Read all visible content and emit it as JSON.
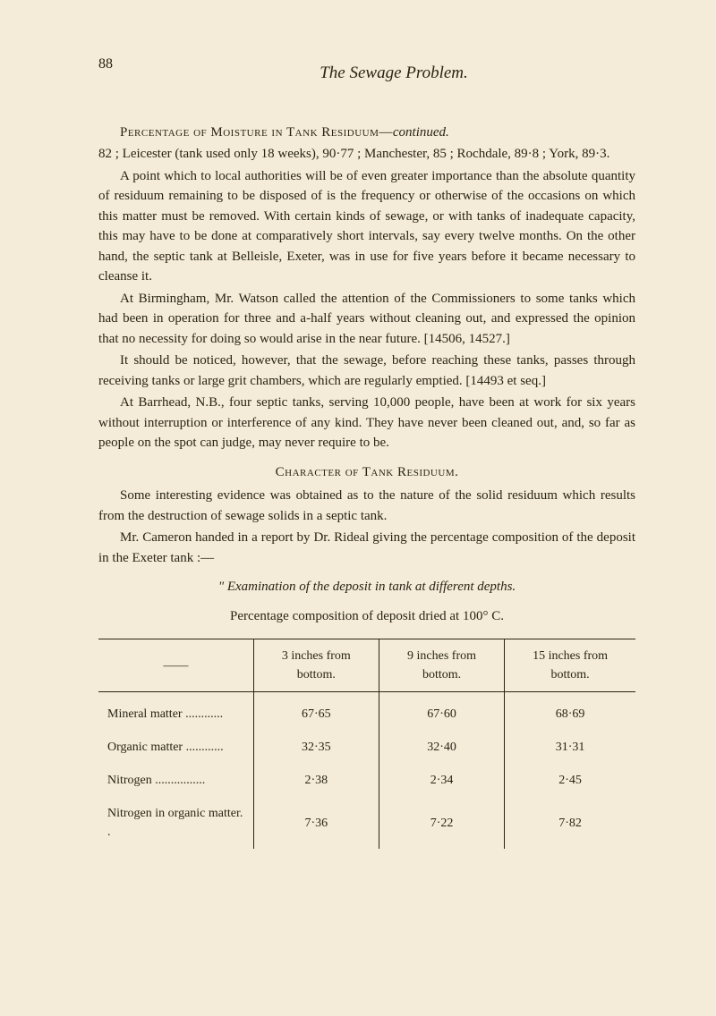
{
  "page_number": "88",
  "header_title": "The Sewage Problem.",
  "section_heading_1_prefix": "Percentage of Moisture in Tank Residuum—",
  "section_heading_1_suffix_italic": "continued.",
  "para_1": "82 ; Leicester (tank used only 18 weeks), 90·77 ; Manchester, 85 ; Rochdale, 89·8 ; York, 89·3.",
  "para_2": "A point which to local authorities will be of even greater importance than the absolute quantity of residuum remaining to be disposed of is the frequency or otherwise of the occasions on which this matter must be removed. With certain kinds of sewage, or with tanks of inadequate capacity, this may have to be done at comparatively short intervals, say every twelve months. On the other hand, the septic tank at Belleisle, Exeter, was in use for five years before it became necessary to cleanse it.",
  "para_3": "At Birmingham, Mr. Watson called the attention of the Commissioners to some tanks which had been in operation for three and a-half years without cleaning out, and expressed the opinion that no necessity for doing so would arise in the near future. [14506, 14527.]",
  "para_4": "It should be noticed, however, that the sewage, before reaching these tanks, passes through receiving tanks or large grit chambers, which are regularly emptied. [14493 et seq.]",
  "para_5": "At Barrhead, N.B., four septic tanks, serving 10,000 people, have been at work for six years without interruption or interference of any kind. They have never been cleaned out, and, so far as people on the spot can judge, may never require to be.",
  "section_heading_2": "Character of Tank Residuum.",
  "para_6": "Some interesting evidence was obtained as to the nature of the solid residuum which results from the destruction of sewage solids in a septic tank.",
  "para_7": "Mr. Cameron handed in a report by Dr. Rideal giving the percentage composition of the deposit in the Exeter tank :—",
  "quote_italic": "\" Examination of the deposit in tank at different depths.",
  "quote_plain": "Percentage composition of deposit dried at 100° C.",
  "table": {
    "columns": [
      {
        "label": "——",
        "width": "34%",
        "align": "left"
      },
      {
        "label": "3 inches from bottom.",
        "width": "22%",
        "align": "center"
      },
      {
        "label": "9 inches from bottom.",
        "width": "22%",
        "align": "center"
      },
      {
        "label": "15 inches from bottom.",
        "width": "22%",
        "align": "center"
      }
    ],
    "rows": [
      [
        "Mineral matter ............",
        "67·65",
        "67·60",
        "68·69"
      ],
      [
        "Organic matter ............",
        "32·35",
        "32·40",
        "31·31"
      ],
      [
        "Nitrogen  ................",
        "2·38",
        "2·34",
        "2·45"
      ],
      [
        "Nitrogen in organic matter. .",
        "7·36",
        "7·22",
        "7·82"
      ]
    ],
    "header_border_color": "#2a2416",
    "font_size": 14
  },
  "colors": {
    "background": "#f4ecd8",
    "text": "#2a2416"
  },
  "typography": {
    "body_font_size": 15,
    "header_font_size": 19,
    "table_font_size": 14
  }
}
